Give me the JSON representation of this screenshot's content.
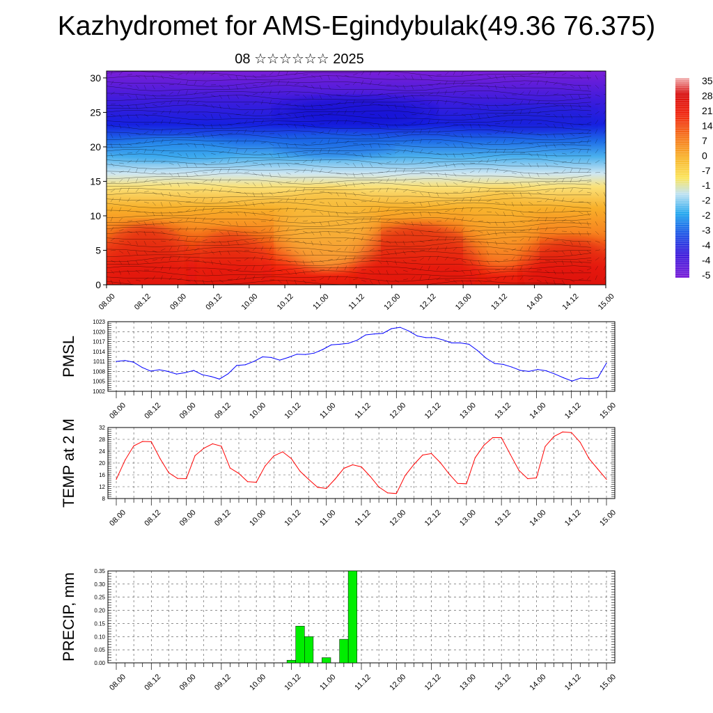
{
  "title": "Kazhydromet for AMS-Egindybulak(49.36 76.375)",
  "subtitle": "08 ☆☆☆☆☆☆ 2025",
  "x_labels": [
    "08.00",
    "08.12",
    "09.00",
    "09.12",
    "10.00",
    "10.12",
    "11.00",
    "11.12",
    "12.00",
    "12.12",
    "13.00",
    "13.12",
    "14.00",
    "14.12",
    "15.00"
  ],
  "chart_data": [
    {
      "type": "heatmap",
      "name": "temperature-cross-section",
      "ylim": [
        0,
        31
      ],
      "yticks": [
        0,
        5,
        10,
        15,
        20,
        25,
        30
      ],
      "colorbar_labels": [
        "35",
        "28",
        "21",
        "14",
        "7",
        "0",
        "-7",
        "-1",
        "-2",
        "-2",
        "-3",
        "-4",
        "-4",
        "-5"
      ]
    },
    {
      "type": "line",
      "ylabel": "PMSL",
      "ylim": [
        1002,
        1023
      ],
      "yticks": [
        "1002",
        "1005",
        "1008",
        "1011",
        "1014",
        "1017",
        "1020",
        "1023"
      ],
      "color": "#0000ff",
      "values": [
        1011,
        1011.3,
        1010.8,
        1009.2,
        1008.1,
        1008.5,
        1008,
        1007.2,
        1007.6,
        1008.3,
        1007,
        1006.5,
        1005.7,
        1007.3,
        1009.8,
        1010,
        1011,
        1012.4,
        1012.2,
        1011.4,
        1012.2,
        1013.2,
        1013.1,
        1013.5,
        1014.6,
        1016,
        1016.2,
        1016.5,
        1017.4,
        1019,
        1019.3,
        1019.5,
        1020.9,
        1021.3,
        1020.2,
        1018.7,
        1018.2,
        1018.2,
        1017.5,
        1016.6,
        1016.6,
        1016.2,
        1014.3,
        1012,
        1010.4,
        1010.1,
        1009.3,
        1008.3,
        1008,
        1008.6,
        1008.2,
        1007.2,
        1006.1,
        1005.1,
        1006,
        1005.8,
        1006.1,
        1010.5
      ]
    },
    {
      "type": "line",
      "ylabel": "TEMP at 2 M",
      "ylim": [
        8,
        32
      ],
      "yticks": [
        "8",
        "12",
        "16",
        "20",
        "24",
        "28",
        "32"
      ],
      "color": "#ff0000",
      "values": [
        14.5,
        21,
        25.8,
        27.3,
        27.2,
        21.5,
        16.7,
        14.8,
        14.7,
        22.5,
        25,
        26.5,
        25.7,
        18.3,
        16.5,
        13.7,
        13.5,
        19,
        22.4,
        23.8,
        21.5,
        17.2,
        14.4,
        11.8,
        11.4,
        14.6,
        18.2,
        19.4,
        18.7,
        15.5,
        11.9,
        9.9,
        9.7,
        15.8,
        19.5,
        22.7,
        23.2,
        20.2,
        16.4,
        13.1,
        13,
        21.8,
        26,
        28.6,
        28.6,
        23,
        17.5,
        14.7,
        15,
        25.6,
        29,
        30.5,
        30.3,
        27,
        21.5,
        18,
        14.5
      ]
    },
    {
      "type": "bar",
      "ylabel": "PRECIP, mm",
      "ylim": [
        0,
        0.35
      ],
      "yticks": [
        "0.00",
        "0.05",
        "0.10",
        "0.15",
        "0.20",
        "0.25",
        "0.30",
        "0.35"
      ],
      "color": "#00ee00",
      "bars": [
        {
          "x": 10.5,
          "value": 0.01
        },
        {
          "x": 10.625,
          "value": 0.14
        },
        {
          "x": 10.75,
          "value": 0.1
        },
        {
          "x": 11.0,
          "value": 0.02
        },
        {
          "x": 11.25,
          "value": 0.09
        },
        {
          "x": 11.375,
          "value": 0.35
        }
      ]
    }
  ]
}
